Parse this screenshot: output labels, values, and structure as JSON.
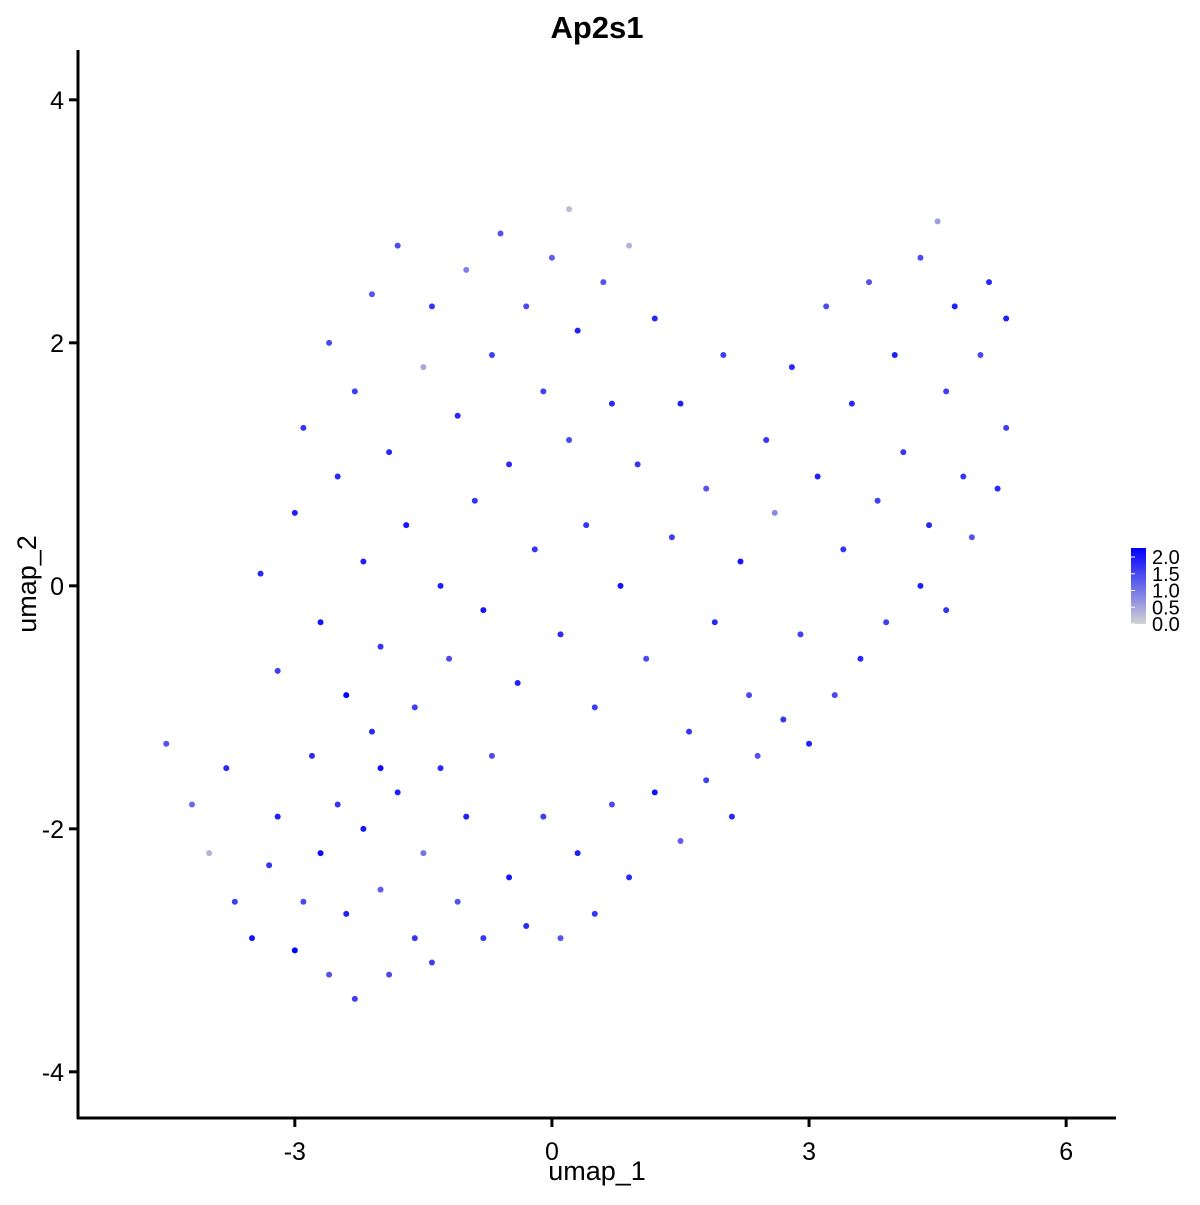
{
  "chart_data": {
    "type": "scatter",
    "title": "Ap2s1",
    "x_label": "umap_1",
    "y_label": "umap_2",
    "xlim": [
      -5.53,
      6.57
    ],
    "ylim": [
      -4.38,
      4.41
    ],
    "xticks": [
      -3,
      0,
      3,
      6
    ],
    "yticks": [
      -4,
      -2,
      0,
      2,
      4
    ],
    "color_scale": {
      "colors": [
        "#d3d3d3",
        "#0000ff"
      ],
      "clim": [
        0,
        2
      ],
      "ticks": [
        {
          "value": 0,
          "label": "0.0"
        },
        {
          "value": 0.5,
          "label": "0.5"
        },
        {
          "value": 1,
          "label": "1.0"
        },
        {
          "value": 1.5,
          "label": "1.5"
        },
        {
          "value": 2,
          "label": "2.0"
        }
      ]
    },
    "x": [
      -4.5,
      -4.2,
      -4.0,
      -3.8,
      -3.7,
      -3.5,
      -3.3,
      -3.2,
      -3.0,
      -2.9,
      -2.8,
      -2.7,
      -2.6,
      -2.5,
      -2.4,
      -2.3,
      -2.2,
      -2.1,
      -2.0,
      -1.9,
      -1.8,
      -1.6,
      -1.5,
      -1.4,
      -1.3,
      -1.1,
      -1.0,
      -0.8,
      -0.7,
      -0.5,
      -0.3,
      -0.1,
      0.1,
      0.3,
      0.5,
      0.7,
      0.9,
      1.2,
      1.5,
      1.8,
      2.1,
      2.4,
      2.7,
      3.0,
      3.3,
      3.6,
      3.9,
      4.3,
      4.6,
      4.9,
      5.2,
      -3.4,
      -3.2,
      -3.0,
      -2.9,
      -2.7,
      -2.6,
      -2.5,
      -2.4,
      -2.3,
      -2.2,
      -2.1,
      -2.0,
      -1.9,
      -1.8,
      -1.7,
      -1.6,
      -1.5,
      -1.4,
      -1.3,
      -1.2,
      -1.1,
      -1.0,
      -0.9,
      -0.8,
      -0.7,
      -0.6,
      -0.5,
      -0.4,
      -0.3,
      -0.2,
      -0.1,
      0.0,
      0.1,
      0.2,
      0.3,
      0.4,
      0.5,
      0.6,
      0.7,
      0.8,
      0.9,
      1.0,
      1.1,
      1.2,
      1.4,
      1.5,
      1.6,
      1.8,
      1.9,
      2.0,
      2.2,
      2.3,
      2.5,
      2.6,
      2.8,
      2.9,
      3.1,
      3.2,
      3.4,
      3.5,
      3.7,
      3.8,
      4.0,
      4.1,
      4.3,
      4.4,
      4.5,
      4.6,
      4.7,
      4.8,
      5.0,
      5.1,
      5.3,
      5.3,
      0.2,
      -2.0
    ],
    "y": [
      -1.3,
      -1.8,
      -2.2,
      -1.5,
      -2.6,
      -2.9,
      -2.3,
      -1.9,
      -3.0,
      -2.6,
      -1.4,
      -2.2,
      -3.2,
      -1.8,
      -2.7,
      -3.4,
      -2.0,
      -1.2,
      -2.5,
      -3.2,
      -1.7,
      -2.9,
      -2.2,
      -3.1,
      -1.5,
      -2.6,
      -1.9,
      -2.9,
      -1.4,
      -2.4,
      -2.8,
      -1.9,
      -2.9,
      -2.2,
      -2.7,
      -1.8,
      -2.4,
      -1.7,
      -2.1,
      -1.6,
      -1.9,
      -1.4,
      -1.1,
      -1.3,
      -0.9,
      -0.6,
      -0.3,
      0.0,
      -0.2,
      0.4,
      0.8,
      0.1,
      -0.7,
      0.6,
      1.3,
      -0.3,
      2.0,
      0.9,
      -0.9,
      1.6,
      0.2,
      2.4,
      -0.5,
      1.1,
      2.8,
      0.5,
      -1.0,
      1.8,
      2.3,
      0.0,
      -0.6,
      1.4,
      2.6,
      0.7,
      -0.2,
      1.9,
      2.9,
      1.0,
      -0.8,
      2.3,
      0.3,
      1.6,
      2.7,
      -0.4,
      1.2,
      2.1,
      0.5,
      -1.0,
      2.5,
      1.5,
      0.0,
      2.8,
      1.0,
      -0.6,
      2.2,
      0.4,
      1.5,
      -1.2,
      0.8,
      -0.3,
      1.9,
      0.2,
      -0.9,
      1.2,
      0.6,
      1.8,
      -0.4,
      0.9,
      2.3,
      0.3,
      1.5,
      2.5,
      0.7,
      1.9,
      1.1,
      2.7,
      0.5,
      3.0,
      1.6,
      2.3,
      0.9,
      1.9,
      2.5,
      1.3,
      2.2,
      3.1,
      -1.5
    ],
    "expression": [
      1.2,
      1.0,
      0.3,
      1.6,
      1.4,
      1.8,
      1.5,
      1.7,
      2.0,
      1.3,
      1.6,
      1.9,
      1.2,
      1.5,
      1.7,
      1.4,
      1.8,
      1.6,
      1.1,
      1.3,
      1.7,
      1.5,
      0.9,
      1.4,
      1.6,
      1.2,
      1.7,
      1.5,
      1.3,
      1.8,
      1.6,
      1.4,
      1.2,
      1.7,
      1.5,
      1.3,
      1.6,
      1.8,
      1.1,
      1.4,
      1.6,
      1.2,
      1.5,
      1.7,
      1.3,
      1.6,
      1.4,
      1.7,
      1.5,
      1.2,
      1.6,
      1.6,
      1.4,
      1.7,
      1.5,
      1.8,
      1.3,
      1.6,
      2.0,
      1.4,
      1.7,
      1.2,
      1.5,
      1.6,
      1.3,
      1.8,
      1.4,
      0.4,
      1.5,
      1.7,
      1.3,
      1.6,
      0.8,
      1.5,
      1.8,
      1.4,
      1.2,
      1.6,
      1.7,
      1.3,
      1.5,
      1.4,
      1.1,
      1.6,
      1.3,
      1.7,
      1.5,
      1.4,
      1.2,
      1.6,
      1.8,
      0.3,
      1.5,
      1.3,
      1.6,
      1.4,
      1.7,
      1.5,
      1.2,
      1.6,
      1.4,
      1.8,
      1.3,
      1.5,
      0.7,
      1.6,
      1.4,
      1.7,
      1.3,
      1.5,
      1.6,
      1.2,
      1.4,
      1.7,
      1.5,
      1.3,
      1.6,
      0.5,
      1.4,
      1.7,
      1.5,
      1.3,
      1.6,
      1.4,
      1.7,
      0.2,
      1.9
    ]
  }
}
